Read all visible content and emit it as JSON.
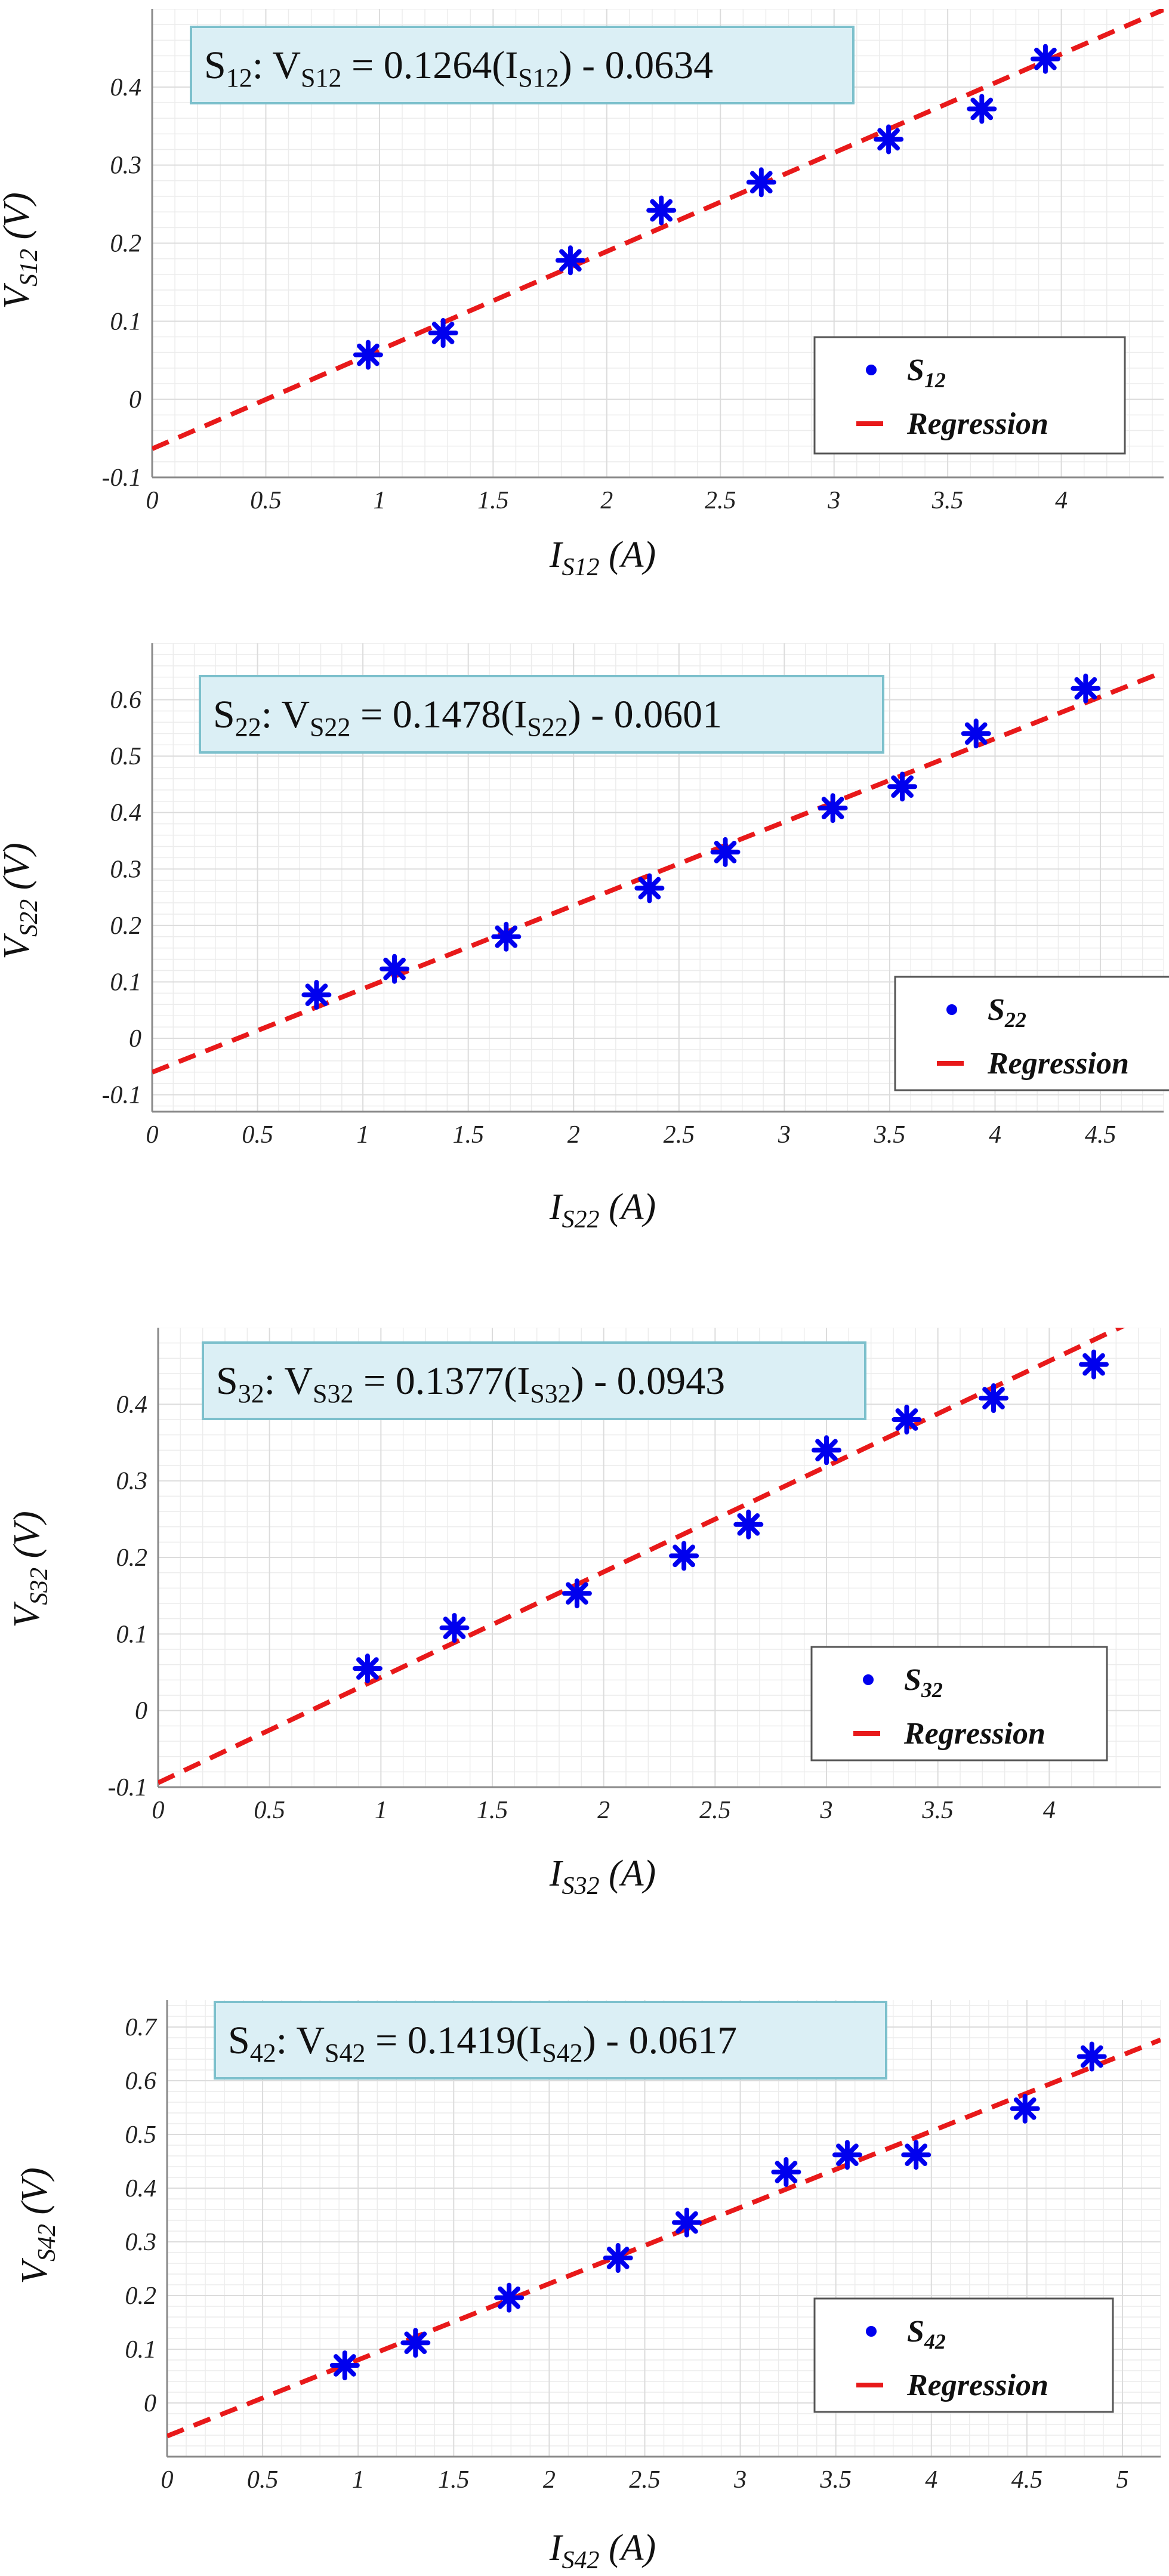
{
  "colors": {
    "points": "#0000ee",
    "regression": "#e8191a",
    "grid_minor": "#ececec",
    "grid_major": "#dcdcdc",
    "axis": "#8a8a8a",
    "tick_text": "#222222",
    "annot_fill": "#dbeff5",
    "annot_border": "#7cc0cc",
    "legend_border": "#555555"
  },
  "chart_data": [
    {
      "type": "scatter",
      "id": "s12",
      "series_label": "S",
      "series_sub": "12",
      "ylabel_main": "V",
      "ylabel_sub": "S12",
      "ylabel_unit": " (V)",
      "xlabel_main": "I",
      "xlabel_sub": "S12",
      "xlabel_unit": " (A)",
      "annotation": {
        "label": "S",
        "label_sub": "12",
        "eq_v": "V",
        "eq_v_sub": "S12",
        "eq_mid": " = 0.1264(I",
        "eq_i_sub": "S12",
        "eq_end": ") - 0.0634"
      },
      "legend": {
        "regression": "Regression"
      },
      "xlim": [
        0,
        4.45
      ],
      "ylim": [
        -0.1,
        0.5
      ],
      "xticks": [
        0,
        0.5,
        1,
        1.5,
        2,
        2.5,
        3,
        3.5,
        4
      ],
      "xtick_labels": [
        "0",
        "0.5",
        "1",
        "1.5",
        "2",
        "2.5",
        "3",
        "3.5",
        "4"
      ],
      "yticks": [
        -0.1,
        0,
        0.1,
        0.2,
        0.3,
        0.4
      ],
      "ytick_labels": [
        "-0.1",
        "0",
        "0.1",
        "0.2",
        "0.3",
        "0.4"
      ],
      "x": [
        0.95,
        1.28,
        1.84,
        2.24,
        2.68,
        3.24,
        3.65,
        3.93
      ],
      "y": [
        0.057,
        0.085,
        0.178,
        0.242,
        0.278,
        0.333,
        0.372,
        0.436
      ],
      "regression": {
        "slope": 0.1264,
        "intercept": -0.0634
      }
    },
    {
      "type": "scatter",
      "id": "s22",
      "series_label": "S",
      "series_sub": "22",
      "ylabel_main": "V",
      "ylabel_sub": "S22",
      "ylabel_unit": " (V)",
      "xlabel_main": "I",
      "xlabel_sub": "S22",
      "xlabel_unit": " (A)",
      "annotation": {
        "label": "S",
        "label_sub": "22",
        "eq_v": "V",
        "eq_v_sub": "S22",
        "eq_mid": " = 0.1478(I",
        "eq_i_sub": "S22",
        "eq_end": ") - 0.0601"
      },
      "legend": {
        "regression": "Regression"
      },
      "xlim": [
        0,
        4.8
      ],
      "ylim": [
        -0.13,
        0.7
      ],
      "xticks": [
        0,
        0.5,
        1,
        1.5,
        2,
        2.5,
        3,
        3.5,
        4,
        4.5
      ],
      "xtick_labels": [
        "0",
        "0.5",
        "1",
        "1.5",
        "2",
        "2.5",
        "3",
        "3.5",
        "4",
        "4.5"
      ],
      "yticks": [
        -0.1,
        0,
        0.1,
        0.2,
        0.3,
        0.4,
        0.5,
        0.6
      ],
      "ytick_labels": [
        "-0.1",
        "0",
        "0.1",
        "0.2",
        "0.3",
        "0.4",
        "0.5",
        "0.6"
      ],
      "x": [
        0.78,
        1.15,
        1.68,
        2.36,
        2.72,
        3.23,
        3.56,
        3.91,
        4.43
      ],
      "y": [
        0.077,
        0.123,
        0.18,
        0.266,
        0.33,
        0.408,
        0.446,
        0.54,
        0.62
      ],
      "regression": {
        "slope": 0.1478,
        "intercept": -0.0601
      }
    },
    {
      "type": "scatter",
      "id": "s32",
      "series_label": "S",
      "series_sub": "32",
      "ylabel_main": "V",
      "ylabel_sub": "S32",
      "ylabel_unit": " (V)",
      "xlabel_main": "I",
      "xlabel_sub": "S32",
      "xlabel_unit": " (A)",
      "annotation": {
        "label": "S",
        "label_sub": "32",
        "eq_v": "V",
        "eq_v_sub": "S32",
        "eq_mid": " = 0.1377(I",
        "eq_i_sub": "S32",
        "eq_end": ") - 0.0943"
      },
      "legend": {
        "regression": "Regression"
      },
      "xlim": [
        0,
        4.5
      ],
      "ylim": [
        -0.1,
        0.5
      ],
      "xticks": [
        0,
        0.5,
        1,
        1.5,
        2,
        2.5,
        3,
        3.5,
        4
      ],
      "xtick_labels": [
        "0",
        "0.5",
        "1",
        "1.5",
        "2",
        "2.5",
        "3",
        "3.5",
        "4"
      ],
      "yticks": [
        -0.1,
        0,
        0.1,
        0.2,
        0.3,
        0.4
      ],
      "ytick_labels": [
        "-0.1",
        "0",
        "0.1",
        "0.2",
        "0.3",
        "0.4"
      ],
      "x": [
        0.94,
        1.33,
        1.88,
        2.36,
        2.65,
        3.0,
        3.36,
        3.75,
        4.2
      ],
      "y": [
        0.055,
        0.108,
        0.153,
        0.202,
        0.243,
        0.34,
        0.38,
        0.408,
        0.452
      ],
      "regression": {
        "slope": 0.1377,
        "intercept": -0.0943
      }
    },
    {
      "type": "scatter",
      "id": "s42",
      "series_label": "S",
      "series_sub": "42",
      "ylabel_main": "V",
      "ylabel_sub": "S42",
      "ylabel_unit": " (V)",
      "xlabel_main": "I",
      "xlabel_sub": "S42",
      "xlabel_unit": " (A)",
      "annotation": {
        "label": "S",
        "label_sub": "42",
        "eq_v": "V",
        "eq_v_sub": "S42",
        "eq_mid": " = 0.1419(I",
        "eq_i_sub": "S42",
        "eq_end": ") - 0.0617"
      },
      "legend": {
        "regression": "Regression"
      },
      "xlim": [
        0,
        5.2
      ],
      "ylim": [
        -0.1,
        0.75
      ],
      "xticks": [
        0,
        0.5,
        1,
        1.5,
        2,
        2.5,
        3,
        3.5,
        4,
        4.5,
        5
      ],
      "xtick_labels": [
        "0",
        "0.5",
        "1",
        "1.5",
        "2",
        "2.5",
        "3",
        "3.5",
        "4",
        "4.5",
        "5"
      ],
      "yticks": [
        0,
        0.1,
        0.2,
        0.3,
        0.4,
        0.5,
        0.6,
        0.7
      ],
      "ytick_labels": [
        "0",
        "0.1",
        "0.2",
        "0.3",
        "0.4",
        "0.5",
        "0.6",
        "0.7"
      ],
      "x": [
        0.93,
        1.3,
        1.79,
        2.36,
        2.72,
        3.24,
        3.56,
        3.92,
        4.49,
        4.84
      ],
      "y": [
        0.07,
        0.112,
        0.196,
        0.27,
        0.336,
        0.43,
        0.462,
        0.462,
        0.548,
        0.645
      ],
      "regression": {
        "slope": 0.1419,
        "intercept": -0.0617
      }
    }
  ]
}
